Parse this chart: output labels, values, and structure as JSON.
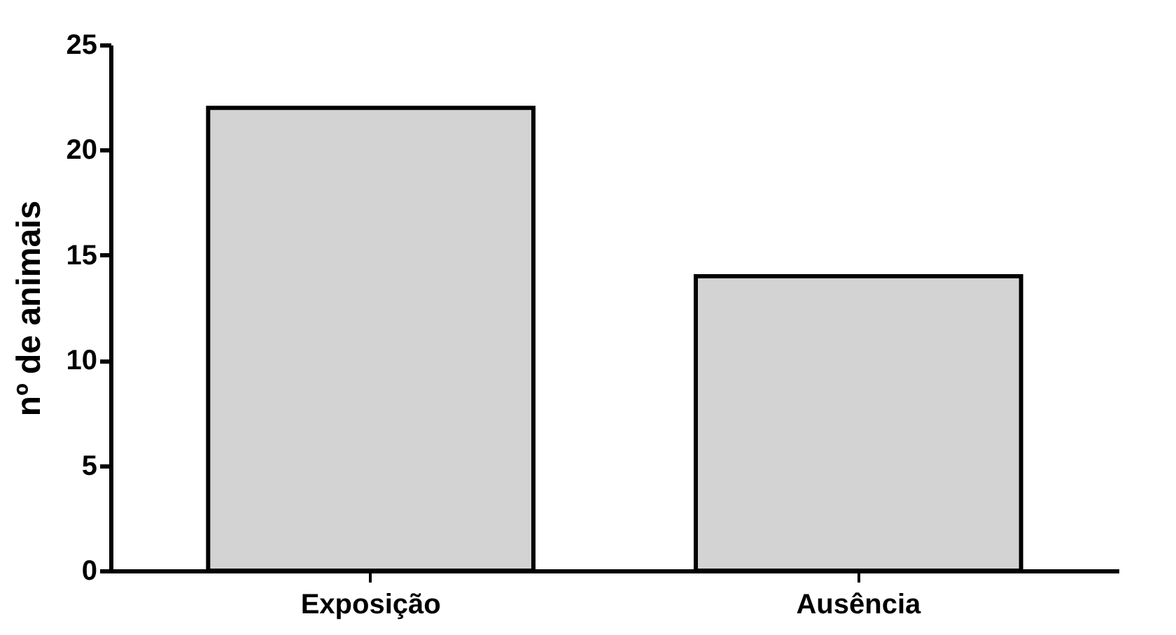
{
  "chart_data": {
    "type": "bar",
    "ylabel": "nº de animais",
    "categories": [
      "Exposição",
      "Ausência"
    ],
    "values": [
      22,
      14
    ],
    "color": "#d3d3d3",
    "ylim": [
      0,
      25
    ],
    "yticks": [
      0,
      5,
      10,
      15,
      20,
      25
    ],
    "grid": false
  }
}
